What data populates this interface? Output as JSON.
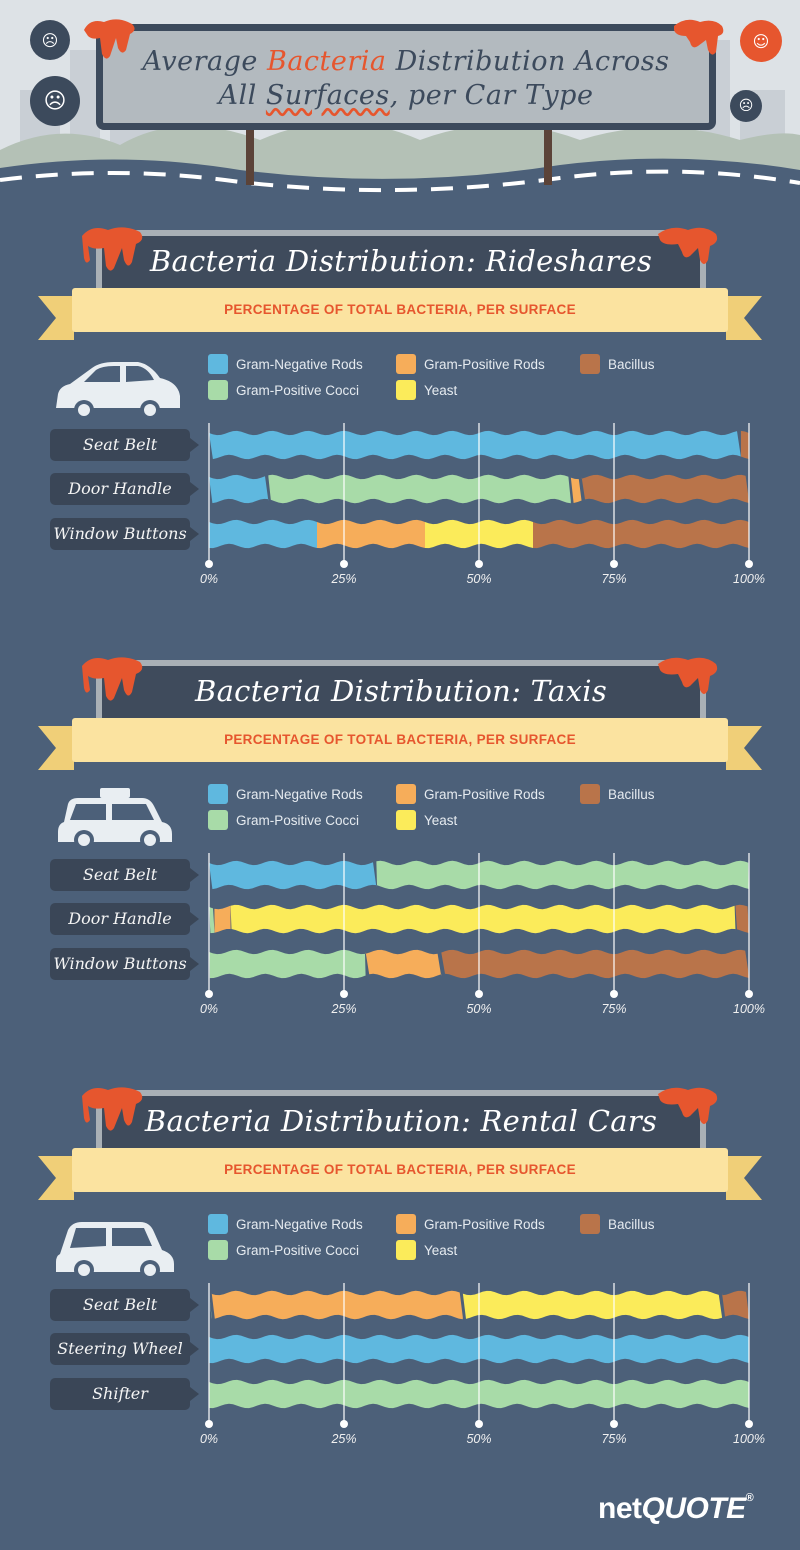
{
  "header": {
    "title_part1": "Average ",
    "title_accent": "Bacteria",
    "title_part2": " Distribution Across",
    "title_line2_part1": "All ",
    "title_line2_underline": "Surfaces",
    "title_line2_part2": ", per Car Type"
  },
  "colors": {
    "gram_negative_rods": "#5fb8df",
    "gram_positive_rods": "#f6ad5a",
    "bacillus": "#b9744a",
    "gram_positive_cocci": "#a8dba8",
    "yeast": "#fbeb5a",
    "accent": "#e6562e"
  },
  "legend": {
    "items": [
      {
        "key": "gram_negative_rods",
        "label": "Gram-Negative Rods"
      },
      {
        "key": "gram_positive_rods",
        "label": "Gram-Positive Rods"
      },
      {
        "key": "bacillus",
        "label": "Bacillus"
      },
      {
        "key": "gram_positive_cocci",
        "label": "Gram-Positive Cocci"
      },
      {
        "key": "yeast",
        "label": "Yeast"
      }
    ]
  },
  "subtitle": "PERCENTAGE OF TOTAL BACTERIA, PER SURFACE",
  "ticks": [
    "0%",
    "25%",
    "50%",
    "75%",
    "100%"
  ],
  "sections": [
    {
      "title": "Bacteria Distribution: Rideshares",
      "car_icon": "sedan-car-icon"
    },
    {
      "title": "Bacteria Distribution: Taxis",
      "car_icon": "taxi-car-icon"
    },
    {
      "title": "Bacteria Distribution: Rental Cars",
      "car_icon": "hatchback-car-icon"
    }
  ],
  "chart_data": [
    {
      "type": "bar",
      "stacked": true,
      "orientation": "horizontal",
      "title": "Bacteria Distribution: Rideshares",
      "subtitle": "PERCENTAGE OF TOTAL BACTERIA, PER SURFACE",
      "categories": [
        "Seat Belt",
        "Door Handle",
        "Window Buttons"
      ],
      "xlim": [
        0,
        100
      ],
      "series": [
        {
          "name": "Gram-Negative Rods",
          "values": [
            98.5,
            11,
            20
          ]
        },
        {
          "name": "Gram-Positive Cocci",
          "values": [
            0,
            56,
            0
          ]
        },
        {
          "name": "Gram-Positive Rods",
          "values": [
            0,
            2,
            20
          ]
        },
        {
          "name": "Yeast",
          "values": [
            0,
            0,
            20
          ]
        },
        {
          "name": "Bacillus",
          "values": [
            1.5,
            31,
            40
          ]
        }
      ]
    },
    {
      "type": "bar",
      "stacked": true,
      "orientation": "horizontal",
      "title": "Bacteria Distribution: Taxis",
      "subtitle": "PERCENTAGE OF TOTAL BACTERIA, PER SURFACE",
      "categories": [
        "Seat Belt",
        "Door Handle",
        "Window Buttons"
      ],
      "xlim": [
        0,
        100
      ],
      "series": [
        {
          "name": "Gram-Negative Rods",
          "values": [
            31,
            0,
            0
          ]
        },
        {
          "name": "Gram-Positive Cocci",
          "values": [
            69,
            1,
            29
          ]
        },
        {
          "name": "Gram-Positive Rods",
          "values": [
            0,
            3,
            14
          ]
        },
        {
          "name": "Yeast",
          "values": [
            0,
            93.5,
            0
          ]
        },
        {
          "name": "Bacillus",
          "values": [
            0,
            2.5,
            57
          ]
        }
      ]
    },
    {
      "type": "bar",
      "stacked": true,
      "orientation": "horizontal",
      "title": "Bacteria Distribution: Rental Cars",
      "subtitle": "PERCENTAGE OF TOTAL BACTERIA, PER SURFACE",
      "categories": [
        "Seat Belt",
        "Steering Wheel",
        "Shifter"
      ],
      "xlim": [
        0,
        100
      ],
      "series": [
        {
          "name": "Gram-Negative Rods",
          "values": [
            0,
            100,
            0
          ]
        },
        {
          "name": "Gram-Positive Cocci",
          "values": [
            0.5,
            0,
            100
          ]
        },
        {
          "name": "Gram-Positive Rods",
          "values": [
            46.5,
            0,
            0
          ]
        },
        {
          "name": "Yeast",
          "values": [
            48,
            0,
            0
          ]
        },
        {
          "name": "Bacillus",
          "values": [
            5,
            0,
            0
          ]
        }
      ]
    }
  ],
  "logo": {
    "part1": "net",
    "part2": "QUOTE",
    "mark": "®"
  }
}
